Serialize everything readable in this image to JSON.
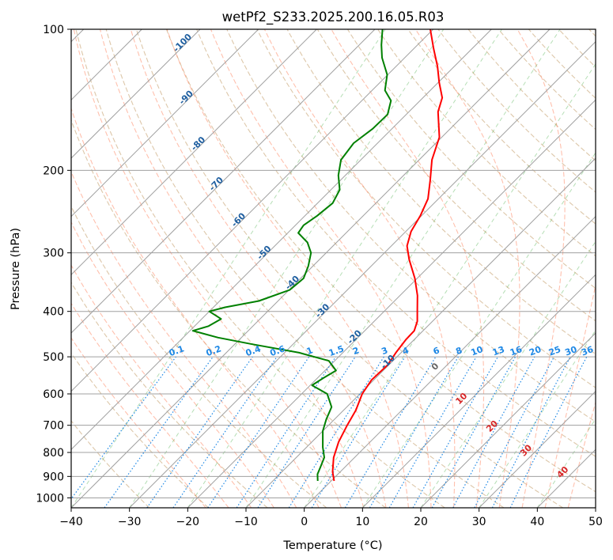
{
  "chart_data": {
    "type": "line",
    "title": "wetPf2_S233.2025.200.16.05.R03",
    "xlabel": "Temperature (°C)",
    "ylabel": "Pressure (hPa)",
    "xlim": [
      -40,
      50
    ],
    "ylim": [
      1050,
      100
    ],
    "y_scale": "log",
    "grid": true,
    "x_ticks": [
      -40,
      -30,
      -20,
      -10,
      0,
      10,
      20,
      30,
      40,
      50
    ],
    "x_tick_labels": [
      "−40",
      "−30",
      "−20",
      "−10",
      "0",
      "10",
      "20",
      "30",
      "40",
      "50"
    ],
    "y_ticks": [
      100,
      200,
      300,
      400,
      500,
      600,
      700,
      800,
      900,
      1000
    ],
    "y_tick_labels": [
      "100",
      "200",
      "300",
      "400",
      "500",
      "600",
      "700",
      "800",
      "900",
      "1000"
    ],
    "skew_degrees": 45,
    "reference_lines": {
      "dry_adiabats_color": "#d2b48c",
      "moist_adiabats_color": "#ff8c69",
      "mixing_ratio_color": "#1e88e5",
      "isotherm_color": "#a0a0a0",
      "wetbulb_zero_color": "#2ca02c"
    },
    "upper_isotherm_labels": [
      "-100",
      "-90",
      "-80",
      "-70",
      "-60",
      "-50",
      "-40",
      "-30",
      "-20",
      "-10"
    ],
    "lower_isotherm_labels": [
      "0",
      "10",
      "20",
      "30",
      "40"
    ],
    "mixing_ratio_labels": [
      "0.1",
      "0.2",
      "0.4",
      "0.6",
      "1",
      "1.5",
      "2",
      "3",
      "4",
      "6",
      "8",
      "10",
      "13",
      "16",
      "20",
      "25",
      "30",
      "36"
    ],
    "series": [
      {
        "color": "#ff0000",
        "points": [
          {
            "p": 920,
            "t": 0.5
          },
          {
            "p": 880,
            "t": -1.3
          },
          {
            "p": 820,
            "t": -3.6
          },
          {
            "p": 760,
            "t": -5.4
          },
          {
            "p": 700,
            "t": -6.8
          },
          {
            "p": 650,
            "t": -7.9
          },
          {
            "p": 600,
            "t": -9.6
          },
          {
            "p": 560,
            "t": -10.4
          },
          {
            "p": 520,
            "t": -10.2
          },
          {
            "p": 490,
            "t": -10.9
          },
          {
            "p": 460,
            "t": -11.4
          },
          {
            "p": 440,
            "t": -11.5
          },
          {
            "p": 420,
            "t": -12.6
          },
          {
            "p": 400,
            "t": -14.3
          },
          {
            "p": 370,
            "t": -17.0
          },
          {
            "p": 340,
            "t": -20.4
          },
          {
            "p": 310,
            "t": -24.6
          },
          {
            "p": 290,
            "t": -27.3
          },
          {
            "p": 270,
            "t": -29.1
          },
          {
            "p": 250,
            "t": -30.2
          },
          {
            "p": 230,
            "t": -31.8
          },
          {
            "p": 210,
            "t": -34.6
          },
          {
            "p": 190,
            "t": -37.8
          },
          {
            "p": 170,
            "t": -40.4
          },
          {
            "p": 150,
            "t": -45.0
          },
          {
            "p": 140,
            "t": -46.7
          },
          {
            "p": 130,
            "t": -49.8
          },
          {
            "p": 120,
            "t": -52.9
          },
          {
            "p": 110,
            "t": -56.6
          },
          {
            "p": 100,
            "t": -60.5
          }
        ]
      },
      {
        "color": "#008000",
        "points": [
          {
            "p": 920,
            "t": -2.3
          },
          {
            "p": 890,
            "t": -3.5
          },
          {
            "p": 860,
            "t": -4.2
          },
          {
            "p": 820,
            "t": -5.2
          },
          {
            "p": 780,
            "t": -7.2
          },
          {
            "p": 720,
            "t": -10.0
          },
          {
            "p": 680,
            "t": -11.4
          },
          {
            "p": 640,
            "t": -12.6
          },
          {
            "p": 600,
            "t": -15.6
          },
          {
            "p": 575,
            "t": -19.7
          },
          {
            "p": 555,
            "t": -19.0
          },
          {
            "p": 535,
            "t": -18.1
          },
          {
            "p": 510,
            "t": -21.0
          },
          {
            "p": 490,
            "t": -27.5
          },
          {
            "p": 470,
            "t": -37.0
          },
          {
            "p": 455,
            "t": -44.0
          },
          {
            "p": 440,
            "t": -49.5
          },
          {
            "p": 430,
            "t": -47.6
          },
          {
            "p": 415,
            "t": -46.7
          },
          {
            "p": 400,
            "t": -50.0
          },
          {
            "p": 392,
            "t": -48.0
          },
          {
            "p": 380,
            "t": -43.3
          },
          {
            "p": 360,
            "t": -39.9
          },
          {
            "p": 340,
            "t": -39.5
          },
          {
            "p": 320,
            "t": -40.8
          },
          {
            "p": 300,
            "t": -42.6
          },
          {
            "p": 285,
            "t": -45.0
          },
          {
            "p": 272,
            "t": -48.2
          },
          {
            "p": 262,
            "t": -48.6
          },
          {
            "p": 250,
            "t": -47.9
          },
          {
            "p": 235,
            "t": -47.4
          },
          {
            "p": 220,
            "t": -48.5
          },
          {
            "p": 205,
            "t": -51.2
          },
          {
            "p": 190,
            "t": -53.4
          },
          {
            "p": 175,
            "t": -54.1
          },
          {
            "p": 163,
            "t": -53.3
          },
          {
            "p": 152,
            "t": -53.2
          },
          {
            "p": 142,
            "t": -55.0
          },
          {
            "p": 135,
            "t": -57.8
          },
          {
            "p": 125,
            "t": -60.1
          },
          {
            "p": 115,
            "t": -63.9
          },
          {
            "p": 108,
            "t": -66.2
          },
          {
            "p": 100,
            "t": -68.7
          }
        ]
      }
    ]
  }
}
